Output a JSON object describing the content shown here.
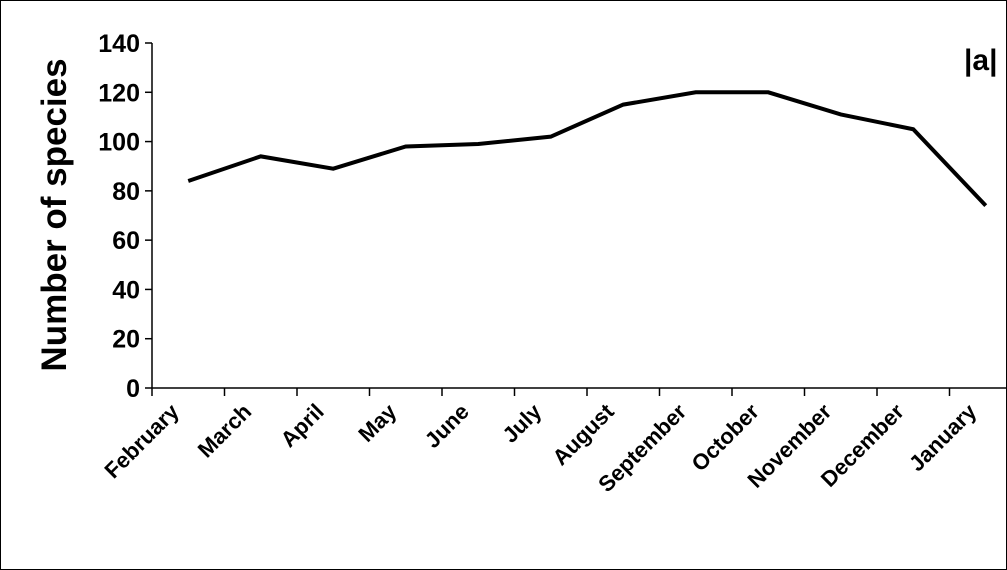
{
  "chart_data": {
    "type": "line",
    "ylabel": "Number of species",
    "annotation": "|a|",
    "categories": [
      "February",
      "March",
      "April",
      "May",
      "June",
      "July",
      "August",
      "September",
      "October",
      "November",
      "December",
      "January"
    ],
    "values": [
      84,
      94,
      89,
      98,
      99,
      102,
      115,
      120,
      120,
      111,
      105,
      74
    ],
    "color": "#000000",
    "ylim": [
      0,
      140
    ],
    "yticks": [
      0,
      20,
      40,
      60,
      80,
      100,
      120,
      140
    ],
    "grid": false
  }
}
